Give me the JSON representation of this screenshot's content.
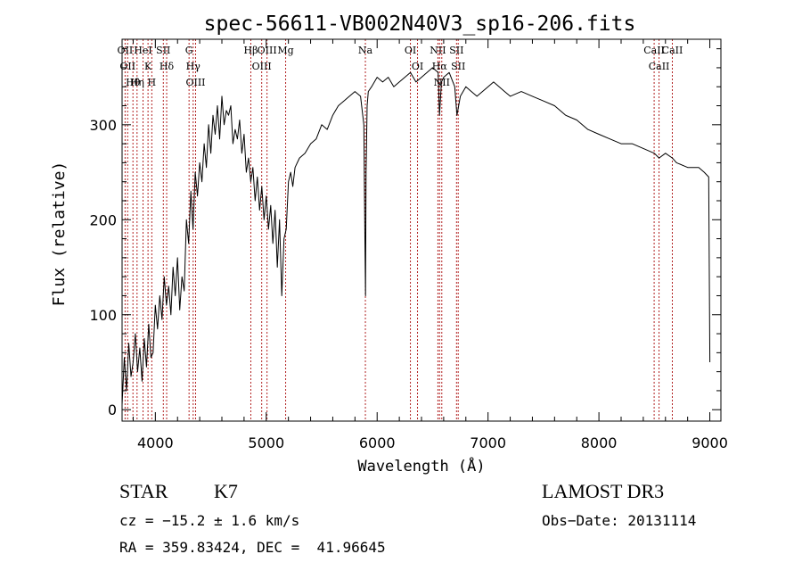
{
  "chart_data": {
    "type": "line",
    "title": "spec-56611-VB002N40V3_sp16-206.fits",
    "xlabel": "Wavelength (Å)",
    "ylabel": "Flux (relative)",
    "xlim": [
      3700,
      9100
    ],
    "ylim": [
      -12,
      390
    ],
    "xticks": [
      4000,
      5000,
      6000,
      7000,
      8000,
      9000
    ],
    "xtick_labels": [
      "4000",
      "5000",
      "6000",
      "7000",
      "8000",
      "9000"
    ],
    "yticks": [
      0,
      100,
      200,
      300
    ],
    "ytick_labels": [
      "0",
      "100",
      "200",
      "300"
    ],
    "grid": false,
    "line_color": "#000000",
    "marker_color": "#b22222",
    "series": [
      {
        "name": "flux",
        "x": [
          3700,
          3720,
          3740,
          3760,
          3780,
          3800,
          3820,
          3840,
          3860,
          3880,
          3900,
          3920,
          3940,
          3960,
          3980,
          4000,
          4020,
          4040,
          4060,
          4080,
          4100,
          4120,
          4140,
          4160,
          4180,
          4200,
          4220,
          4240,
          4260,
          4280,
          4300,
          4320,
          4340,
          4360,
          4380,
          4400,
          4420,
          4440,
          4460,
          4480,
          4500,
          4520,
          4540,
          4560,
          4580,
          4600,
          4620,
          4640,
          4660,
          4680,
          4700,
          4720,
          4740,
          4760,
          4780,
          4800,
          4820,
          4840,
          4860,
          4880,
          4900,
          4920,
          4940,
          4960,
          4980,
          5000,
          5020,
          5040,
          5060,
          5080,
          5100,
          5120,
          5140,
          5160,
          5180,
          5200,
          5220,
          5240,
          5260,
          5280,
          5300,
          5350,
          5400,
          5450,
          5500,
          5550,
          5600,
          5650,
          5700,
          5750,
          5800,
          5850,
          5880,
          5890,
          5895,
          5900,
          5910,
          5920,
          5950,
          6000,
          6050,
          6100,
          6150,
          6200,
          6250,
          6300,
          6350,
          6400,
          6450,
          6500,
          6550,
          6562,
          6580,
          6600,
          6650,
          6700,
          6720,
          6750,
          6800,
          6850,
          6900,
          6950,
          7000,
          7050,
          7100,
          7150,
          7200,
          7300,
          7400,
          7500,
          7600,
          7700,
          7800,
          7900,
          8000,
          8100,
          8200,
          8300,
          8400,
          8500,
          8542,
          8600,
          8662,
          8700,
          8800,
          8900,
          8950,
          8990,
          9000
        ],
        "values": [
          5,
          55,
          20,
          70,
          35,
          50,
          80,
          40,
          65,
          30,
          75,
          45,
          90,
          55,
          60,
          110,
          85,
          120,
          95,
          140,
          110,
          130,
          100,
          150,
          120,
          160,
          105,
          140,
          125,
          200,
          175,
          230,
          190,
          250,
          225,
          260,
          240,
          280,
          255,
          300,
          270,
          310,
          290,
          320,
          285,
          330,
          300,
          315,
          310,
          320,
          280,
          295,
          285,
          305,
          270,
          290,
          250,
          265,
          240,
          255,
          220,
          245,
          210,
          235,
          200,
          225,
          190,
          215,
          175,
          210,
          150,
          200,
          120,
          180,
          190,
          240,
          250,
          235,
          255,
          260,
          265,
          270,
          280,
          285,
          300,
          295,
          310,
          320,
          325,
          330,
          335,
          330,
          300,
          180,
          120,
          250,
          320,
          335,
          340,
          350,
          345,
          350,
          340,
          345,
          350,
          355,
          345,
          350,
          355,
          360,
          355,
          310,
          345,
          350,
          355,
          340,
          310,
          330,
          340,
          335,
          330,
          335,
          340,
          345,
          340,
          335,
          330,
          335,
          330,
          325,
          320,
          310,
          305,
          295,
          290,
          285,
          280,
          280,
          275,
          270,
          265,
          270,
          265,
          260,
          255,
          255,
          250,
          245,
          50
        ]
      }
    ],
    "line_markers": [
      {
        "wavelength": 3727,
        "label": "OII"
      },
      {
        "wavelength": 3750,
        "label": "OII"
      },
      {
        "wavelength": 3798,
        "label": "Hθ"
      },
      {
        "wavelength": 3835,
        "label": "Hη"
      },
      {
        "wavelength": 3889,
        "label": "HeI"
      },
      {
        "wavelength": 3934,
        "label": "K"
      },
      {
        "wavelength": 3968,
        "label": "H"
      },
      {
        "wavelength": 4072,
        "label": "SII"
      },
      {
        "wavelength": 4102,
        "label": "Hδ"
      },
      {
        "wavelength": 4304,
        "label": "G"
      },
      {
        "wavelength": 4341,
        "label": "Hγ"
      },
      {
        "wavelength": 4363,
        "label": "OIII"
      },
      {
        "wavelength": 4861,
        "label": "Hβ"
      },
      {
        "wavelength": 4959,
        "label": "OIII"
      },
      {
        "wavelength": 5007,
        "label": "OIII"
      },
      {
        "wavelength": 5175,
        "label": "Mg"
      },
      {
        "wavelength": 5894,
        "label": "Na"
      },
      {
        "wavelength": 6300,
        "label": "OI"
      },
      {
        "wavelength": 6364,
        "label": "OI"
      },
      {
        "wavelength": 6548,
        "label": "NII"
      },
      {
        "wavelength": 6563,
        "label": "Hα"
      },
      {
        "wavelength": 6583,
        "label": "NII"
      },
      {
        "wavelength": 6716,
        "label": "SII"
      },
      {
        "wavelength": 6731,
        "label": "SII"
      },
      {
        "wavelength": 8498,
        "label": "CaII"
      },
      {
        "wavelength": 8542,
        "label": "CaII"
      },
      {
        "wavelength": 8662,
        "label": "CaII"
      }
    ]
  },
  "info": {
    "object_class": "STAR",
    "subclass": "K7",
    "survey": "LAMOST DR3",
    "cz": "cz = −15.2 ± 1.6 km/s",
    "obs_date": "Obs−Date: 20131114",
    "coords": "RA = 359.83424, DEC =  41.96645"
  }
}
